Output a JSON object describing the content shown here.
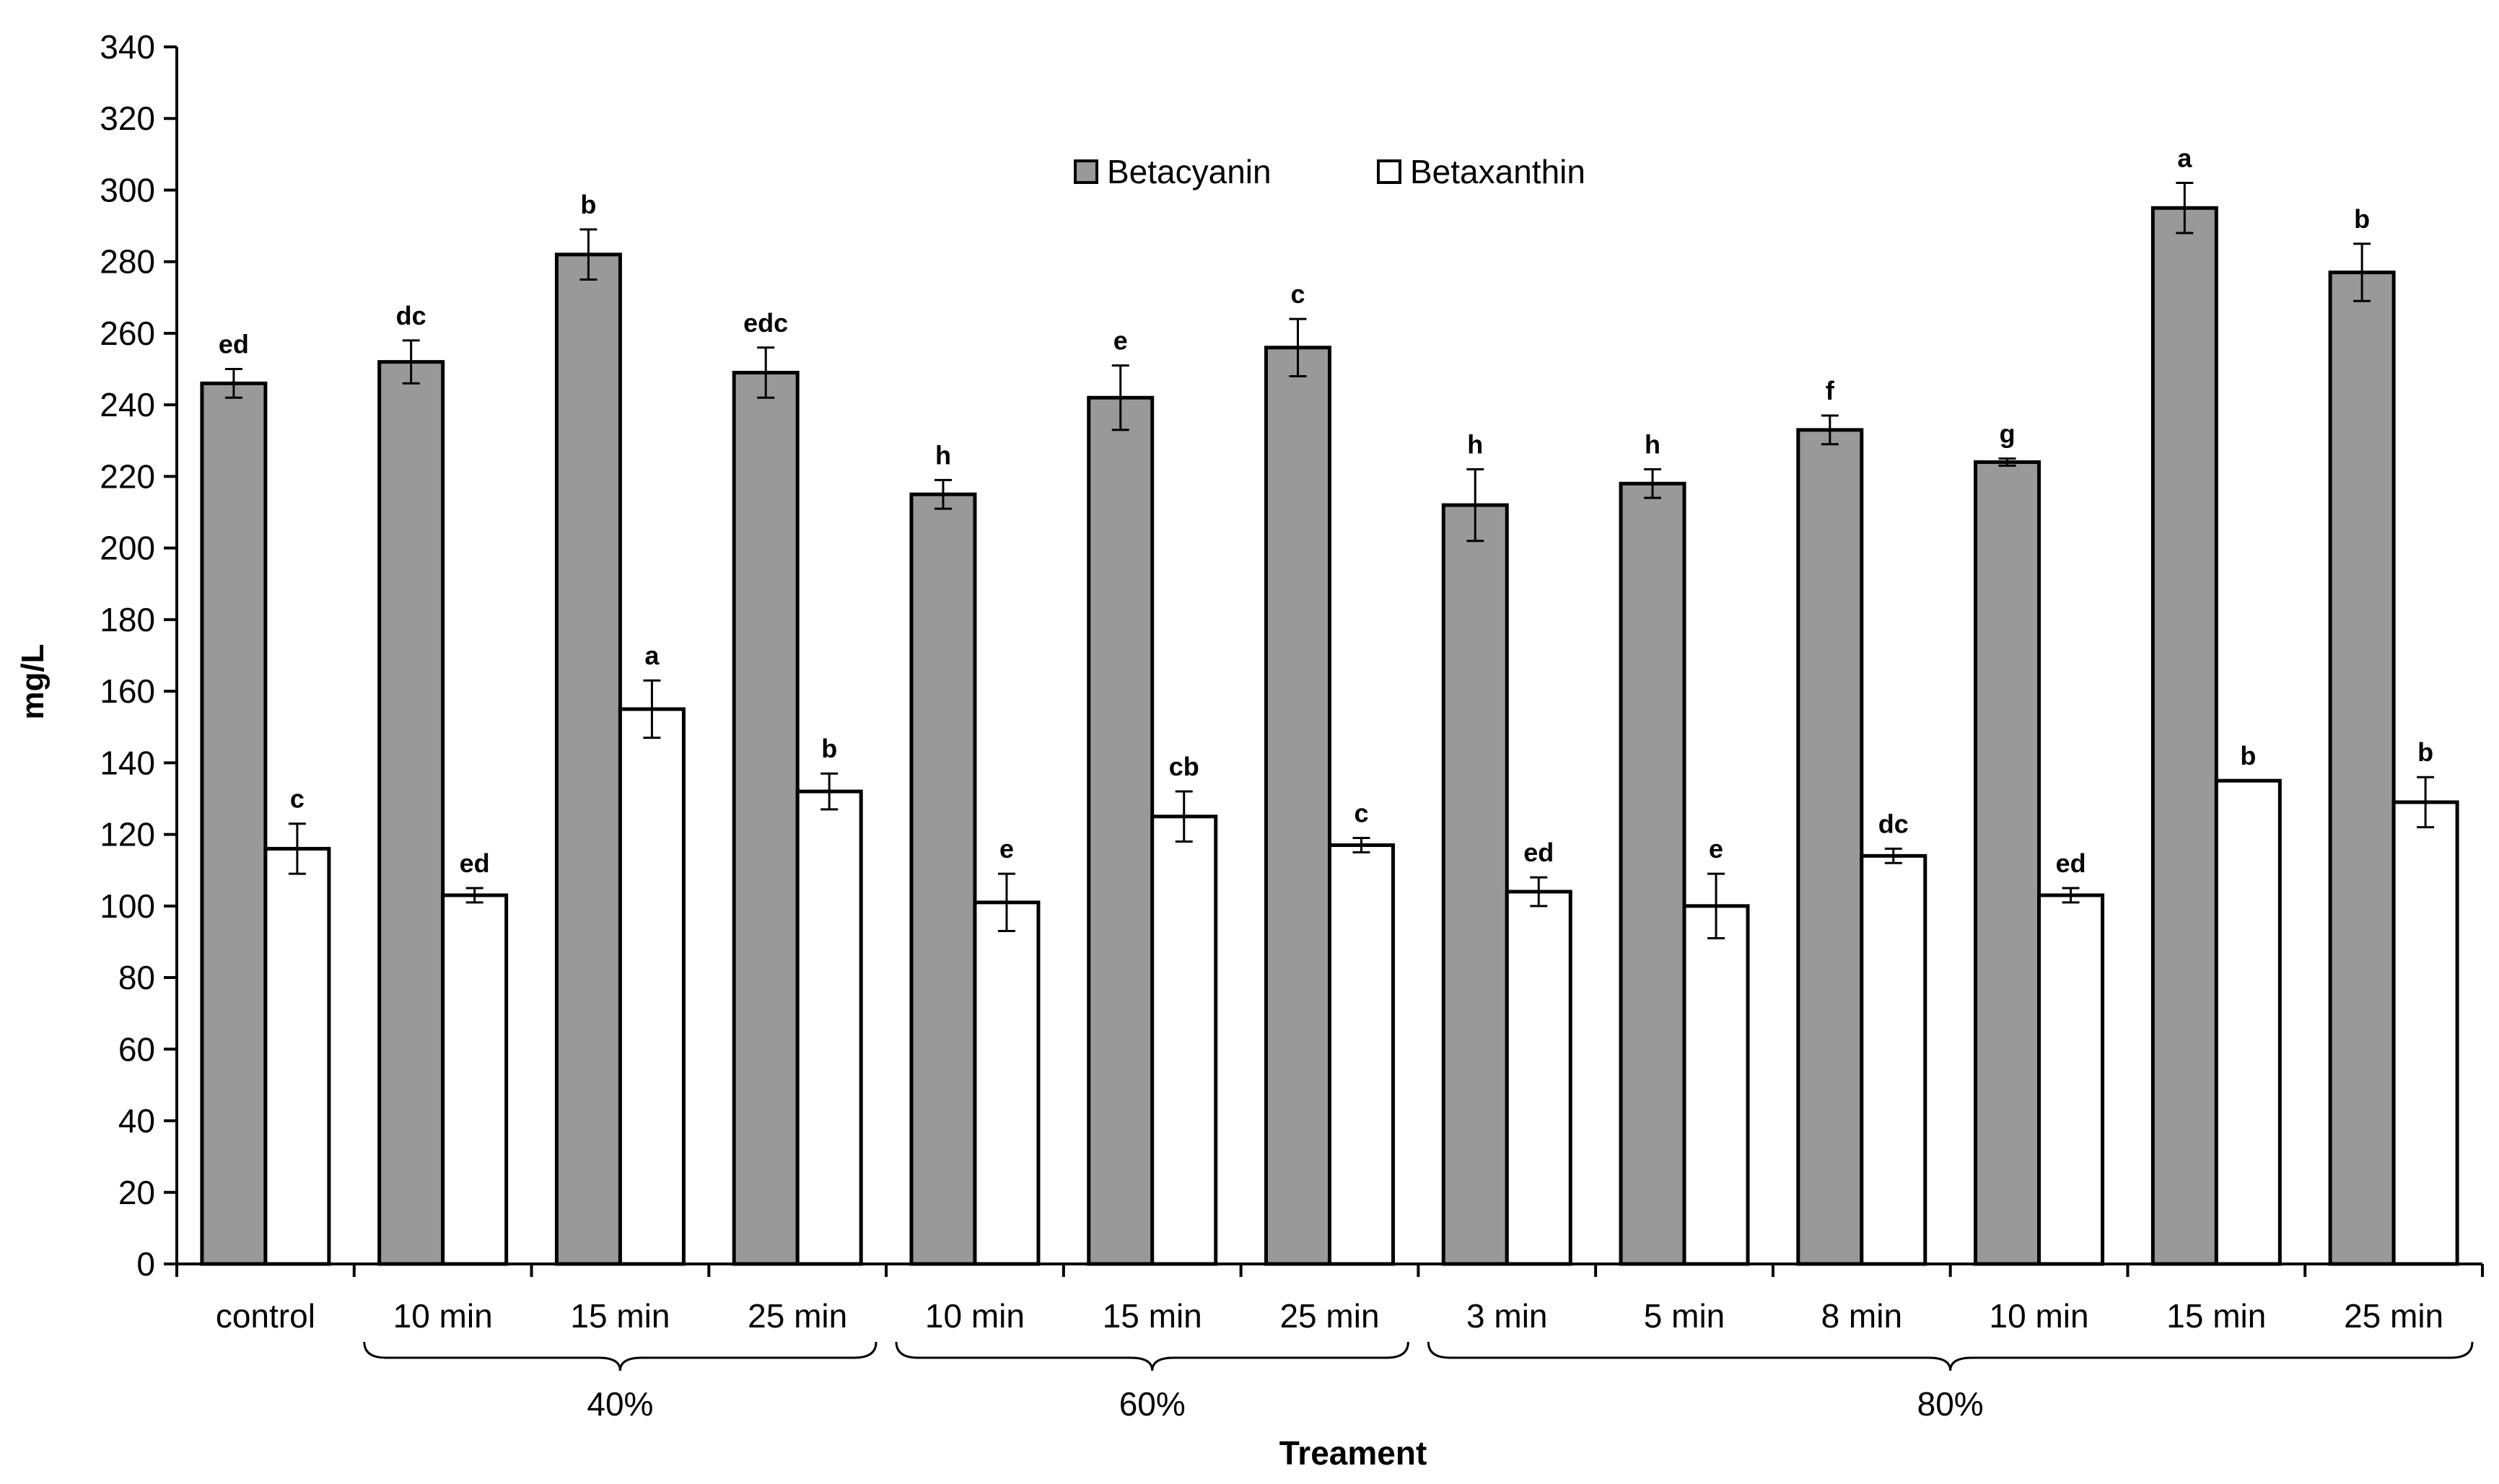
{
  "chart_data": {
    "type": "bar",
    "title": "",
    "xlabel": "Treament",
    "ylabel": "mg/L",
    "ylim": [
      0,
      340
    ],
    "yticks": [
      0,
      20,
      40,
      60,
      80,
      100,
      120,
      140,
      160,
      180,
      200,
      220,
      240,
      260,
      280,
      300,
      320,
      340
    ],
    "grid": false,
    "legend_position": "top-center",
    "categories": [
      "control",
      "10 min",
      "15 min",
      "25 min",
      "10 min",
      "15 min",
      "25 min",
      "3 min",
      "5 min",
      "8 min",
      "10 min",
      "15 min",
      "25 min"
    ],
    "groups": [
      {
        "label": "40%",
        "start": 1,
        "end": 3
      },
      {
        "label": "60%",
        "start": 4,
        "end": 6
      },
      {
        "label": "80%",
        "start": 7,
        "end": 12
      }
    ],
    "series": [
      {
        "name": "Betacyanin",
        "color": "#999999",
        "values": [
          246,
          252,
          282,
          249,
          215,
          242,
          256,
          212,
          218,
          233,
          224,
          295,
          277
        ],
        "errors": [
          4,
          6,
          7,
          7,
          4,
          9,
          8,
          10,
          4,
          4,
          1,
          7,
          8
        ],
        "letters": [
          "ed",
          "dc",
          "b",
          "edc",
          "h",
          "e",
          "c",
          "h",
          "h",
          "f",
          "g",
          "a",
          "b"
        ]
      },
      {
        "name": "Betaxanthin",
        "color": "#ffffff",
        "values": [
          116,
          103,
          155,
          132,
          101,
          125,
          117,
          104,
          100,
          114,
          103,
          135,
          129
        ],
        "errors": [
          7,
          2,
          8,
          5,
          8,
          7,
          2,
          4,
          9,
          2,
          2,
          0,
          7
        ],
        "letters": [
          "c",
          "ed",
          "a",
          "b",
          "e",
          "cb",
          "c",
          "ed",
          "e",
          "dc",
          "ed",
          "b",
          "b"
        ]
      }
    ]
  }
}
